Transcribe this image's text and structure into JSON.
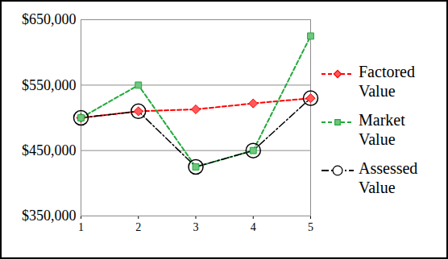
{
  "chart_data": {
    "type": "line",
    "x": [
      1,
      2,
      3,
      4,
      5
    ],
    "xlim": [
      1,
      5
    ],
    "xticks": [
      1,
      2,
      3,
      4,
      5
    ],
    "ylim": [
      350000,
      650000
    ],
    "yticks": [
      {
        "value": 350000,
        "label": "$350,000"
      },
      {
        "value": 450000,
        "label": "$450,000"
      },
      {
        "value": 550000,
        "label": "$550,000"
      },
      {
        "value": 650000,
        "label": "$650,000"
      }
    ],
    "grid": true,
    "legend": "right",
    "series": [
      {
        "name": "Factored Value",
        "color": "#ff0000",
        "marker": "diamond",
        "line_style": "dashed",
        "values": [
          500000,
          510000,
          513000,
          522000,
          530000
        ]
      },
      {
        "name": "Market Value",
        "color": "#22a83a",
        "marker": "square",
        "line_style": "dashed",
        "values": [
          500000,
          550000,
          425000,
          450000,
          625000
        ]
      },
      {
        "name": "Assessed Value",
        "color": "#000000",
        "marker": "open_circle",
        "line_style": "dashdot",
        "values": [
          500000,
          510000,
          425000,
          450000,
          530000
        ]
      }
    ]
  }
}
